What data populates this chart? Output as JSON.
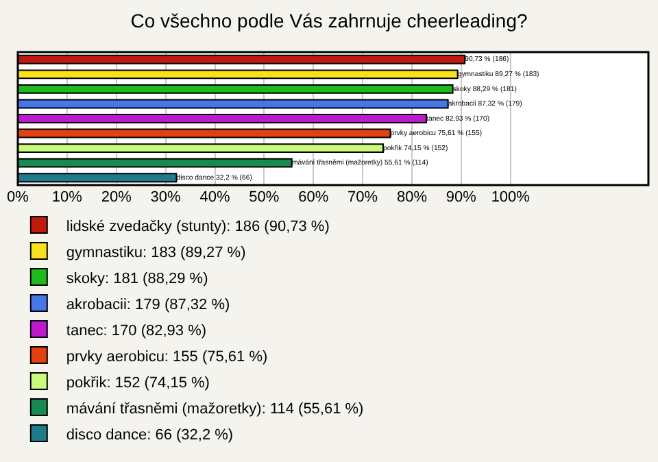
{
  "chart_data": {
    "type": "bar",
    "title": "Co všechno podle Vás zahrnuje cheerleading?",
    "orientation": "horizontal",
    "categories": [
      null,
      null,
      null,
      null,
      null,
      null,
      null,
      null,
      null
    ],
    "series": [
      {
        "name": "lidské zvedačky (stunty): 186 (90,73 %)",
        "color": "#c0190e",
        "values": [
          90.73,
          null,
          null,
          null,
          null,
          null,
          null,
          null,
          null
        ],
        "value_labels": [
          "90,73 % (186)",
          null,
          null,
          null,
          null,
          null,
          null,
          null,
          null
        ]
      },
      {
        "name": "gymnastiku: 183 (89,27 %)",
        "color": "#f8e11a",
        "values": [
          null,
          89.27,
          null,
          null,
          null,
          null,
          null,
          null,
          null
        ],
        "value_labels": [
          null,
          "gymnastiku 89,27 % (183)",
          null,
          null,
          null,
          null,
          null,
          null,
          null
        ]
      },
      {
        "name": "skoky: 181 (88,29 %)",
        "color": "#1fba1c",
        "values": [
          null,
          null,
          88.29,
          null,
          null,
          null,
          null,
          null,
          null
        ],
        "value_labels": [
          null,
          null,
          "skoky 88,29 % (181)",
          null,
          null,
          null,
          null,
          null,
          null
        ]
      },
      {
        "name": "akrobacii: 179 (87,32 %)",
        "color": "#4577e8",
        "values": [
          null,
          null,
          null,
          87.32,
          null,
          null,
          null,
          null,
          null
        ],
        "value_labels": [
          null,
          null,
          null,
          "akrobacii 87,32 % (179)",
          null,
          null,
          null,
          null,
          null
        ]
      },
      {
        "name": "tanec: 170 (82,93 %)",
        "color": "#bd1ad0",
        "values": [
          null,
          null,
          null,
          null,
          82.93,
          null,
          null,
          null,
          null
        ],
        "value_labels": [
          null,
          null,
          null,
          null,
          "tanec 82,93 % (170)",
          null,
          null,
          null,
          null
        ]
      },
      {
        "name": "prvky aerobicu: 155 (75,61 %)",
        "color": "#e3420f",
        "values": [
          null,
          null,
          null,
          null,
          null,
          75.61,
          null,
          null,
          null
        ],
        "value_labels": [
          null,
          null,
          null,
          null,
          null,
          "prvky aerobicu 75,61 % (155)",
          null,
          null,
          null
        ]
      },
      {
        "name": "pokřik: 152 (74,15 %)",
        "color": "#c9fa7c",
        "values": [
          null,
          null,
          null,
          null,
          null,
          null,
          74.15,
          null,
          null
        ],
        "value_labels": [
          null,
          null,
          null,
          null,
          null,
          null,
          "pokřik 74,15 % (152)",
          null,
          null
        ]
      },
      {
        "name": "mávání třasněmi (mažoretky): 114 (55,61 %)",
        "color": "#168a50",
        "values": [
          null,
          null,
          null,
          null,
          null,
          null,
          null,
          55.61,
          null
        ],
        "value_labels": [
          null,
          null,
          null,
          null,
          null,
          null,
          null,
          "mávání třasněmi (mažoretky) 55,61 % (114)",
          null
        ]
      },
      {
        "name": "disco dance: 66 (32,2 %)",
        "color": "#1f7a8c",
        "values": [
          null,
          null,
          null,
          null,
          null,
          null,
          null,
          null,
          32.2
        ],
        "value_labels": [
          null,
          null,
          null,
          null,
          null,
          null,
          null,
          null,
          "disco dance 32,2 % (66)"
        ]
      }
    ],
    "xlim": [
      0,
      128
    ],
    "xticks": [
      {
        "value": 0,
        "label": "0%"
      },
      {
        "value": 10,
        "label": "10%"
      },
      {
        "value": 20,
        "label": "20%"
      },
      {
        "value": 30,
        "label": "30%"
      },
      {
        "value": 40,
        "label": "40%"
      },
      {
        "value": 50,
        "label": "50%"
      },
      {
        "value": 60,
        "label": "60%"
      },
      {
        "value": 70,
        "label": "70%"
      },
      {
        "value": 80,
        "label": "80%"
      },
      {
        "value": 90,
        "label": "90%"
      },
      {
        "value": 100,
        "label": "100%"
      }
    ],
    "grid": "x",
    "legend": "bottom"
  }
}
